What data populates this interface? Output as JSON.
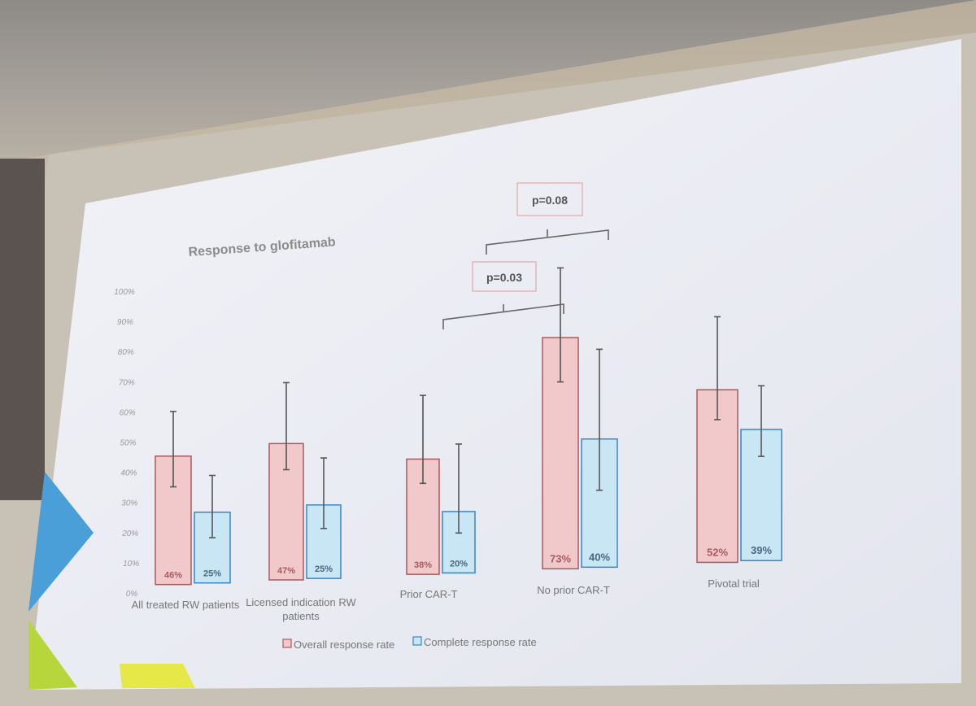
{
  "chart_data": {
    "type": "bar",
    "title": "Response to glofitamab",
    "categories": [
      "All treated RW patients",
      "Licensed indication RW patients",
      "Prior CAR-T",
      "No prior CAR-T",
      "Pivotal trial"
    ],
    "series": [
      {
        "name": "Overall response rate",
        "values": [
          46,
          47,
          38,
          73,
          52
        ],
        "value_labels": [
          "46%",
          "47%",
          "38%",
          "73%",
          "52%"
        ],
        "error_low": [
          35,
          38,
          30,
          59,
          43
        ],
        "error_high": [
          62,
          68,
          59,
          95,
          74
        ],
        "color": "#f2c9cb",
        "border": "#a85a5e"
      },
      {
        "name": "Complete response rate",
        "values": [
          25,
          25,
          20,
          40,
          39
        ],
        "value_labels": [
          "25%",
          "25%",
          "20%",
          "40%",
          "39%"
        ],
        "error_low": [
          16,
          17,
          13,
          24,
          31
        ],
        "error_high": [
          38,
          41,
          42,
          68,
          52
        ],
        "color": "#c9e6f5",
        "border": "#3a86c2"
      }
    ],
    "ylim": [
      0,
      100
    ],
    "yticks": [
      "0%",
      "10%",
      "20%",
      "30%",
      "40%",
      "50%",
      "60%",
      "70%",
      "80%",
      "90%",
      "100%"
    ],
    "legend_placement": "bottom",
    "annotations": [
      {
        "text": "p=0.03",
        "between": [
          "Prior CAR-T",
          "No prior CAR-T"
        ]
      },
      {
        "text": "p=0.08",
        "between": [
          "No prior CAR-T",
          "Pivotal trial"
        ]
      }
    ],
    "grid": false
  },
  "colors": {
    "slide_background": "#eef0f6",
    "accent_blue": "#4a9fd8",
    "accent_green": "#b7d63b",
    "accent_yellow": "#e6e84a"
  }
}
